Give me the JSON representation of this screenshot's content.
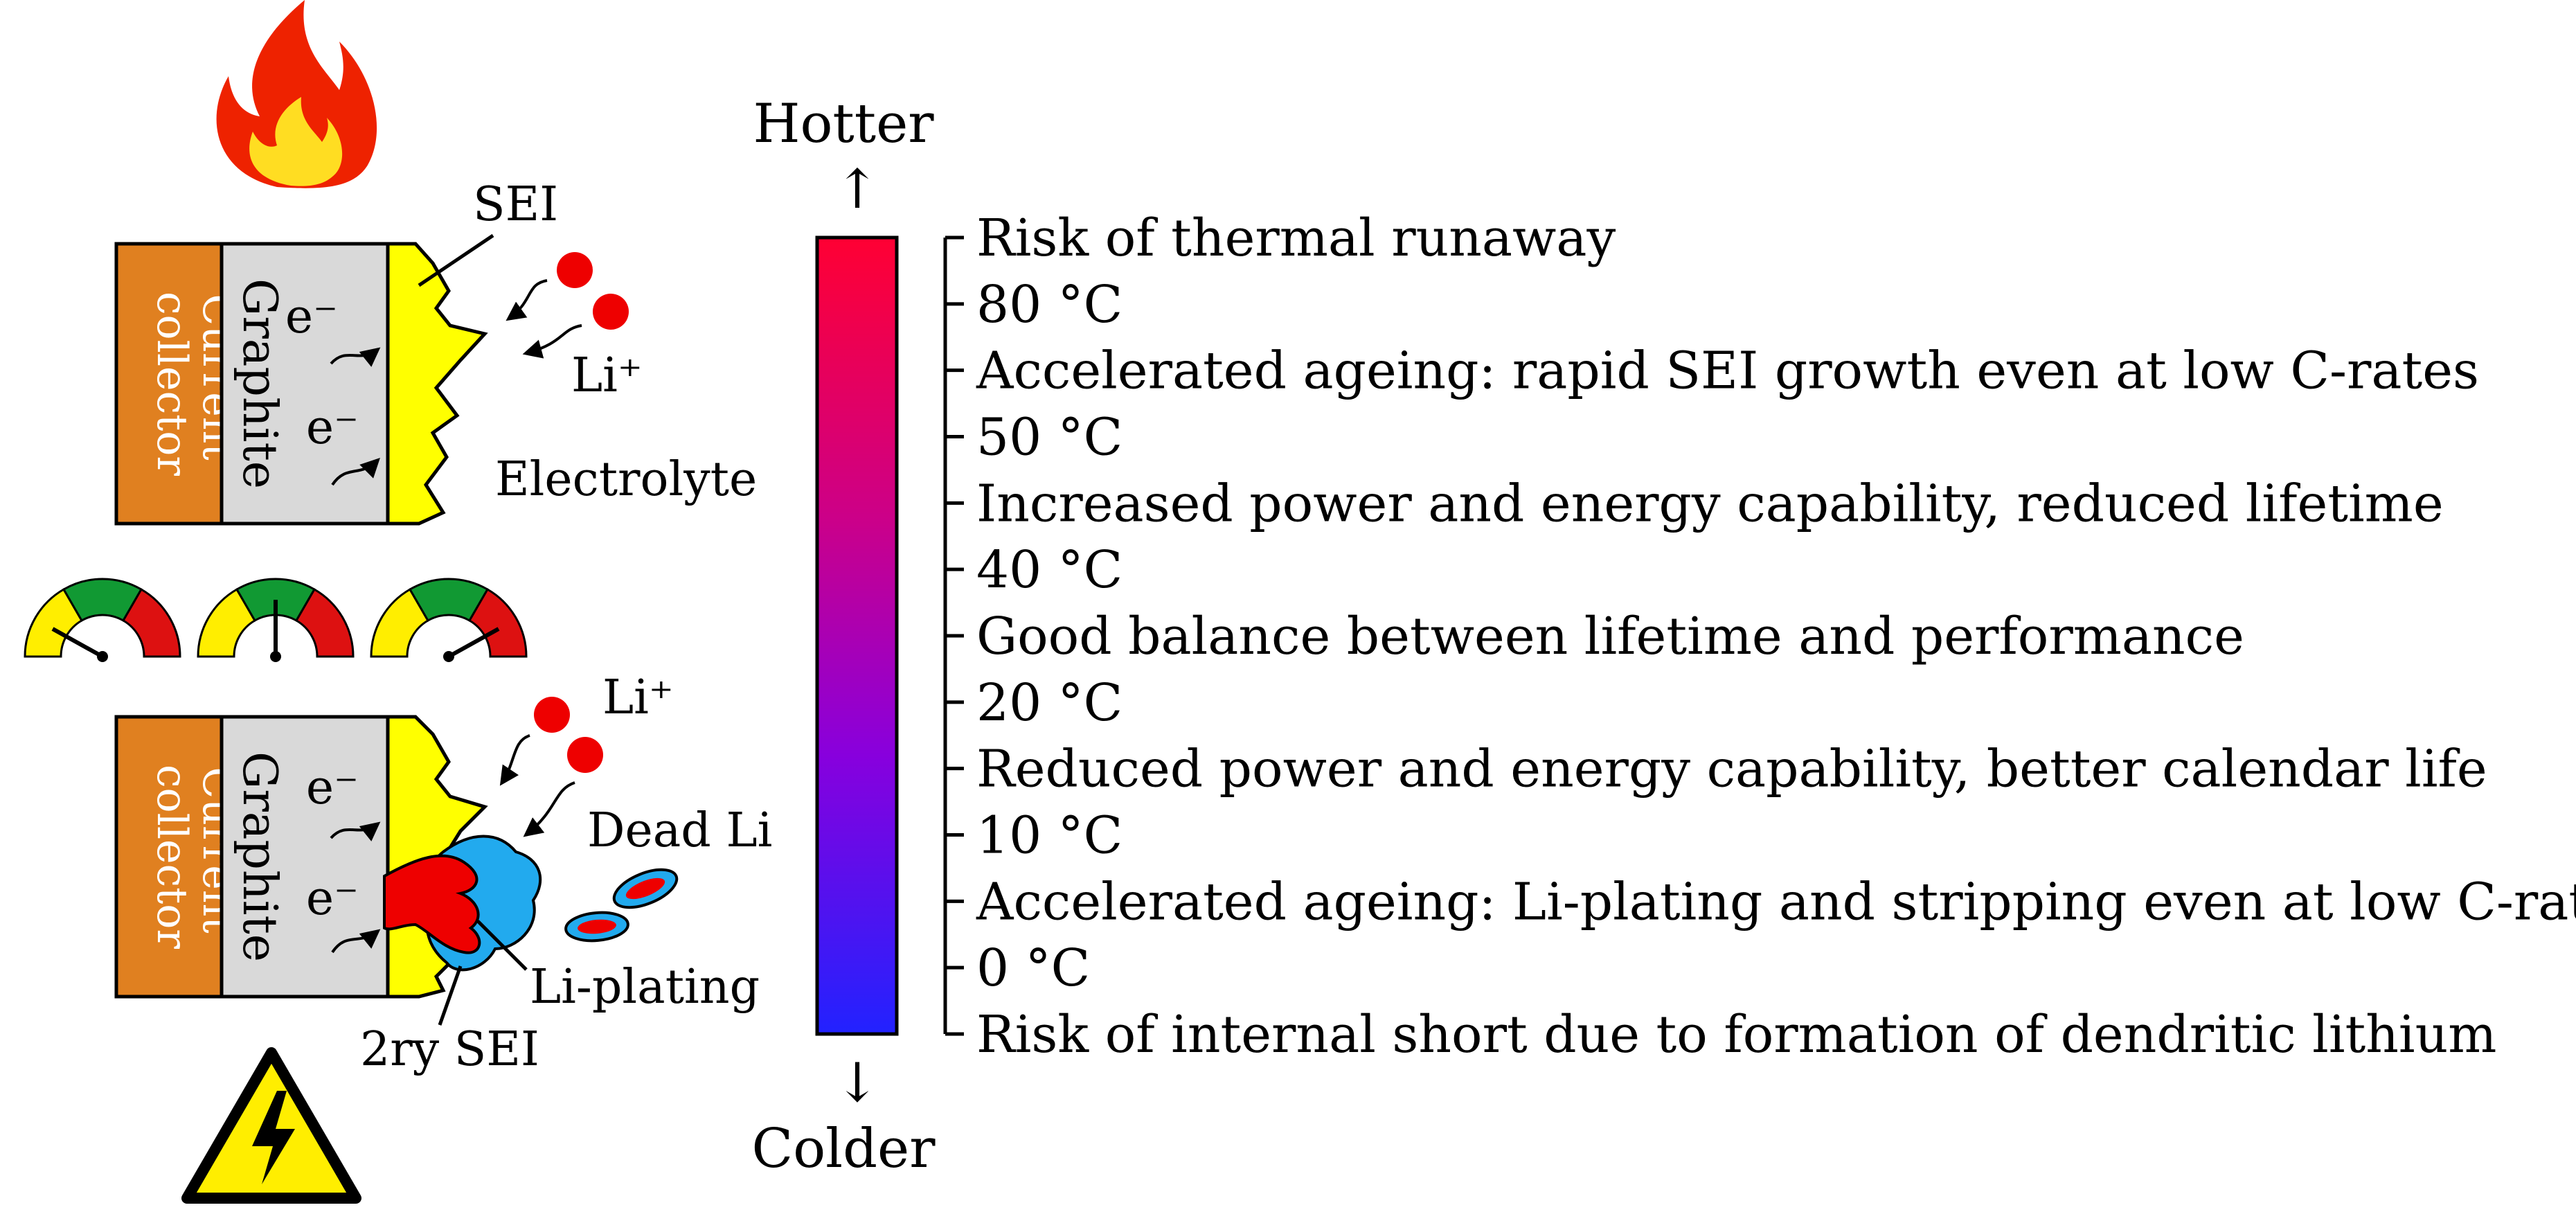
{
  "cells": {
    "top": {
      "current_collector": [
        "Current",
        "collector"
      ],
      "graphite": "Graphite",
      "electron_1": "e⁻",
      "electron_2": "e⁻",
      "sei": "SEI",
      "li_ion": "Li⁺",
      "electrolyte": "Electrolyte"
    },
    "bottom": {
      "current_collector": [
        "Current",
        "collector"
      ],
      "graphite": "Graphite",
      "electron_1": "e⁻",
      "electron_2": "e⁻",
      "li_ion": "Li⁺",
      "dead_li": "Dead Li",
      "li_plating": "Li-plating",
      "secondary_sei": "2ry SEI"
    }
  },
  "icons": {
    "top": "fire-icon",
    "gauges": [
      "gauge-low-icon",
      "gauge-mid-icon",
      "gauge-high-icon"
    ],
    "bottom": "high-voltage-warning-icon"
  },
  "scale": {
    "top_label": "Hotter",
    "top_arrow": "↑",
    "bottom_arrow": "↓",
    "bottom_label": "Colder",
    "gradient_colors": [
      "#ff0033",
      "#cc0088",
      "#8800dd",
      "#2222ff"
    ],
    "entries": [
      "Risk of thermal runaway",
      "80 °C",
      "Accelerated ageing: rapid SEI growth even at low C-rates",
      "50 °C",
      "Increased power and energy capability, reduced lifetime",
      "40 °C",
      "Good balance between lifetime and performance",
      "20 °C",
      "Reduced power and energy capability, better calendar life",
      "10 °C",
      "Accelerated ageing: Li-plating and stripping even at low C-rates",
      "0 °C",
      "Risk of internal short due to formation of dendritic lithium"
    ]
  },
  "colors": {
    "current_collector": "#e08020",
    "graphite": "#d9d9d9",
    "sei": "#ffff00",
    "li_ion": "#ee0000",
    "li_plating": "#22aaee",
    "secondary_sei": "#ee0000"
  }
}
